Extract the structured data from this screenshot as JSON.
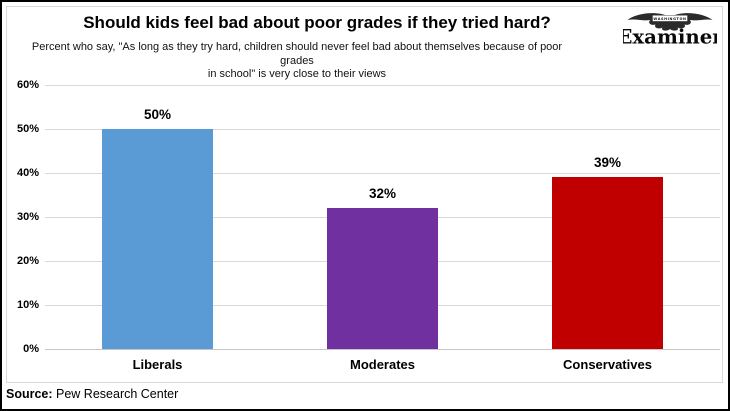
{
  "header": {
    "title": "Should kids feel bad about poor grades if they tried hard?",
    "subtitle": "Percent who say, \"As long as they try hard, children should never feel bad about themselves because of poor grades in school\" is very close to their views",
    "subtitle_line1": "Percent who say, \"As long as they try hard, children should never feel bad about themselves because of poor grades",
    "subtitle_line2": "in school\" is very close to their views"
  },
  "logo": {
    "name": "washington-examiner-logo",
    "brand_small": "WASHINGTON",
    "brand": "Examiner"
  },
  "source": {
    "label": "Source:",
    "text": " Pew Research Center"
  },
  "colors": {
    "gridline": "#d9d9d9",
    "axis_line": "#c6c6c6",
    "text": "#000000",
    "border": "#d9d9d9"
  },
  "chart_data": {
    "type": "bar",
    "title": "Should kids feel bad about poor grades if they tried hard?",
    "subtitle": "Percent who say, \"As long as they try hard, children should never feel bad about themselves because of poor grades in school\" is very close to their views",
    "categories": [
      "Liberals",
      "Moderates",
      "Conservatives"
    ],
    "values": [
      50,
      32,
      39
    ],
    "value_labels": [
      "50%",
      "32%",
      "39%"
    ],
    "bar_colors": [
      "#5B9BD5",
      "#7030A0",
      "#C00000"
    ],
    "xlabel": "",
    "ylabel": "",
    "ylim": [
      0,
      60
    ],
    "ytick_step": 10,
    "ytick_labels": [
      "0%",
      "10%",
      "20%",
      "30%",
      "40%",
      "50%",
      "60%"
    ],
    "grid": true,
    "legend": false,
    "source": "Source: Pew Research Center"
  }
}
